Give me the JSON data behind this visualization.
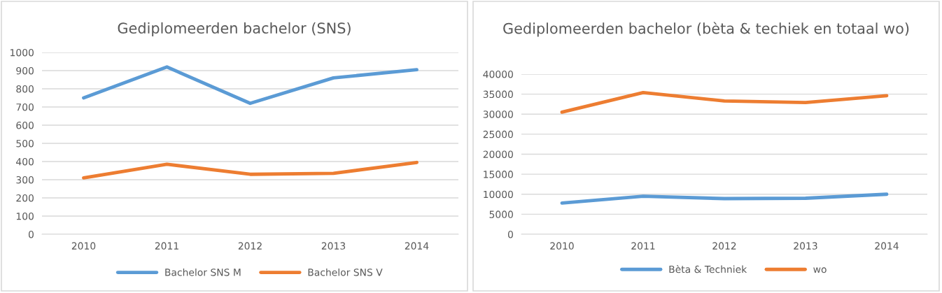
{
  "chart_data": [
    {
      "type": "line",
      "title": "Gediplomeerden bachelor (SNS)",
      "categories": [
        "2010",
        "2011",
        "2012",
        "2013",
        "2014"
      ],
      "series": [
        {
          "name": "Bachelor SNS M",
          "color": "#5b9bd5",
          "values": [
            750,
            920,
            720,
            860,
            905
          ]
        },
        {
          "name": "Bachelor SNS V",
          "color": "#ed7d31",
          "values": [
            310,
            385,
            330,
            335,
            395
          ]
        }
      ],
      "ylim": [
        0,
        1000
      ],
      "yticks": [
        0,
        100,
        200,
        300,
        400,
        500,
        600,
        700,
        800,
        900,
        1000
      ],
      "grid": "y",
      "legend": "bottom",
      "line_style": "solid",
      "marker": "none"
    },
    {
      "type": "line",
      "title": "Gediplomeerden bachelor (bèta & techiek en totaal wo)",
      "categories": [
        "2010",
        "2011",
        "2012",
        "2013",
        "2014"
      ],
      "series": [
        {
          "name": "Bèta & Techniek",
          "color": "#5b9bd5",
          "values": [
            7800,
            9500,
            8900,
            9000,
            10000
          ]
        },
        {
          "name": "wo",
          "color": "#ed7d31",
          "values": [
            30500,
            35400,
            33300,
            32900,
            34600
          ]
        }
      ],
      "ylim": [
        0,
        40000
      ],
      "yticks": [
        0,
        5000,
        10000,
        15000,
        20000,
        25000,
        30000,
        35000,
        40000
      ],
      "grid": "y",
      "legend": "bottom",
      "line_style": "solid",
      "marker": "none"
    }
  ]
}
